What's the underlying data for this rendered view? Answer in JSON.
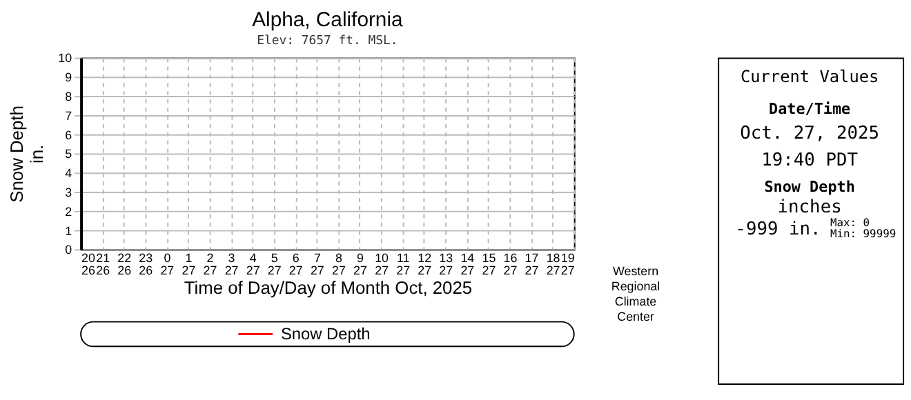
{
  "chart_data": [
    {
      "type": "line",
      "title": "Alpha, California",
      "subtitle": "Elev: 7657 ft. MSL.",
      "xlabel": "Time of Day/Day of Month Oct, 2025",
      "ylabel": "Snow Depth\nin.",
      "categories": [
        "20\n26",
        "21\n26",
        "22\n26",
        "23\n26",
        "0\n27",
        "1\n27",
        "2\n27",
        "3\n27",
        "4\n27",
        "5\n27",
        "6\n27",
        "7\n27",
        "8\n27",
        "9\n27",
        "10\n27",
        "11\n27",
        "12\n27",
        "13\n27",
        "14\n27",
        "15\n27",
        "16\n27",
        "17\n27",
        "18\n27",
        "19\n27"
      ],
      "series": [
        {
          "name": "Snow Depth",
          "color": "#ff0000",
          "values": [
            null,
            null,
            null,
            null,
            null,
            null,
            null,
            null,
            null,
            null,
            null,
            null,
            null,
            null,
            null,
            null,
            null,
            null,
            null,
            null,
            null,
            null,
            null,
            null
          ]
        }
      ],
      "ylim": [
        0,
        10
      ],
      "yticks": [
        0,
        1,
        2,
        3,
        4,
        5,
        6,
        7,
        8,
        9,
        10
      ],
      "grid": true,
      "legend": "bottom",
      "annotations": [
        "Western\nRegional\nClimate\nCenter"
      ]
    },
    {
      "type": "other",
      "title": "Current Values",
      "annotations": [
        "Date/Time",
        "Oct. 27, 2025",
        "19:40 PDT",
        "Snow Depth",
        "inches",
        "-999 in.",
        "Max: 0",
        "Min: 99999"
      ]
    }
  ]
}
